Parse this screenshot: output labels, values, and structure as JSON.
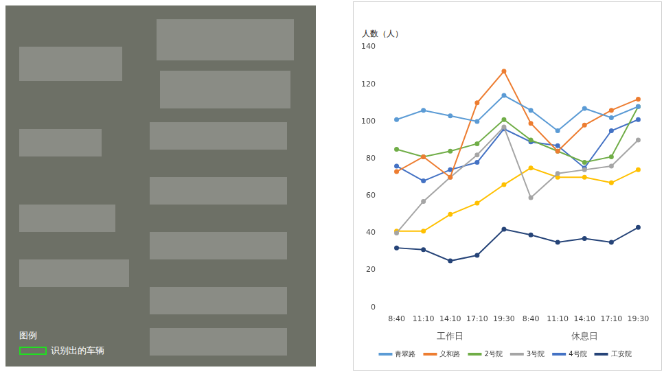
{
  "chart_data": {
    "type": "line",
    "ylabel": "人数（人）",
    "categories": [
      "8:40",
      "11:10",
      "14:10",
      "17:10",
      "19:30",
      "8:40",
      "11:10",
      "14:10",
      "17:10",
      "19:30"
    ],
    "category_groups": [
      {
        "label": "工作日",
        "start": 0,
        "end": 4
      },
      {
        "label": "休息日",
        "start": 5,
        "end": 9
      }
    ],
    "series": [
      {
        "name": "青翠路",
        "color": "#5b9bd5",
        "values": [
          101,
          106,
          103,
          100,
          114,
          106,
          95,
          107,
          102,
          108
        ]
      },
      {
        "name": "义和路",
        "color": "#ed7d31",
        "values": [
          73,
          81,
          70,
          110,
          127,
          99,
          84,
          98,
          106,
          112
        ]
      },
      {
        "name": "2号院",
        "color": "#70ad47",
        "values": [
          85,
          81,
          84,
          88,
          101,
          90,
          84,
          78,
          81,
          108
        ]
      },
      {
        "name": "3号院",
        "color": "#a5a5a5",
        "values": [
          40,
          57,
          70,
          82,
          97,
          59,
          72,
          74,
          76,
          90
        ]
      },
      {
        "name": "4号院",
        "color": "#4472c4",
        "values": [
          76,
          68,
          74,
          78,
          96,
          89,
          87,
          75,
          95,
          101
        ]
      },
      {
        "name": null,
        "color": "#ffc000",
        "values": [
          41,
          41,
          50,
          56,
          66,
          75,
          70,
          70,
          67,
          74
        ]
      },
      {
        "name": "工安院",
        "color": "#264478",
        "values": [
          32,
          31,
          25,
          28,
          42,
          39,
          35,
          37,
          35,
          43
        ]
      }
    ],
    "ylim": [
      0,
      140
    ],
    "yticks": [
      0,
      20,
      40,
      60,
      80,
      100,
      120,
      140
    ],
    "grid": false,
    "legend": "bottom",
    "marker": "circle"
  },
  "image_panel": {
    "legend_title": "图例",
    "legend_items": [
      {
        "label": "识别出的车辆",
        "color": "#22dd22"
      }
    ]
  }
}
